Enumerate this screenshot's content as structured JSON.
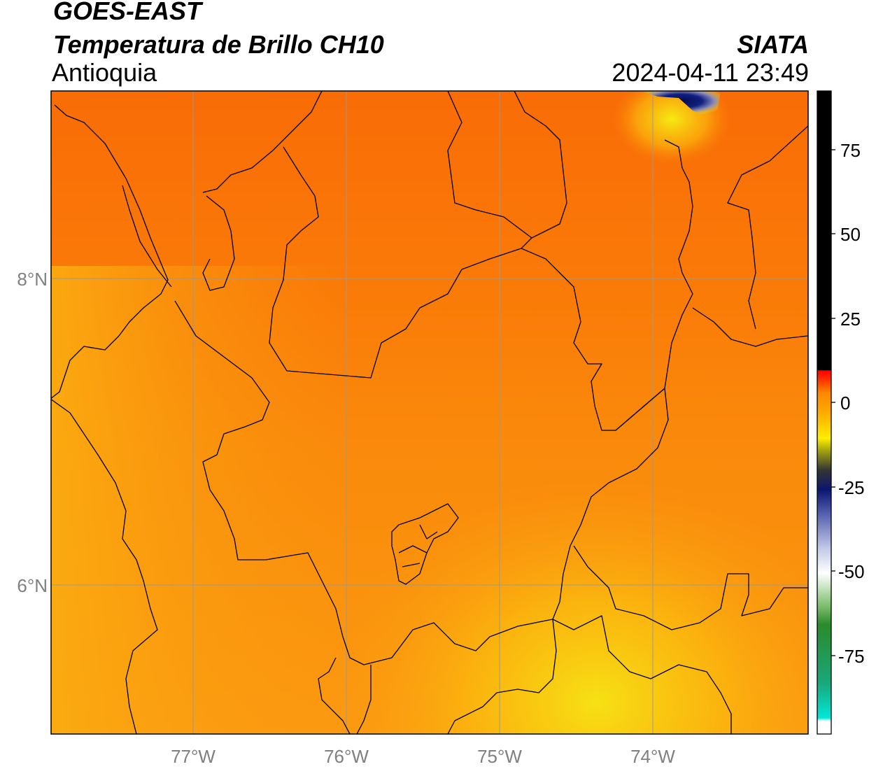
{
  "header": {
    "satellite": "GOES-EAST",
    "product": "Temperatura de Brillo CH10",
    "region": "Antioquia",
    "organization": "SIATA",
    "datetime": "2024-04-11 23:49"
  },
  "map": {
    "lat_labels": [
      "8°N",
      "6°N"
    ],
    "lon_labels": [
      "77°W",
      "76°W",
      "75°W",
      "74°W"
    ],
    "colors": {
      "background_primary": "#fa7a08",
      "background_secondary": "#fb9210",
      "warm_band": "#fbb10e",
      "hot_spot": "#f9e60c",
      "cold_core": "#0b1670",
      "borders": "#000000",
      "grid": "#999999"
    }
  },
  "colorbar": {
    "ticks": [
      "75",
      "50",
      "25",
      "0",
      "-25",
      "-50",
      "-75"
    ],
    "colors": [
      "#00e8d8",
      "#1aa77a",
      "#2b8a2b",
      "#7fbf6f",
      "#ffffff",
      "#c0c6e6",
      "#5b64b0",
      "#0b1670",
      "#343434",
      "#a0a010",
      "#ffee00",
      "#ffaa00",
      "#ff8800",
      "#ff0000",
      "#000000"
    ]
  }
}
